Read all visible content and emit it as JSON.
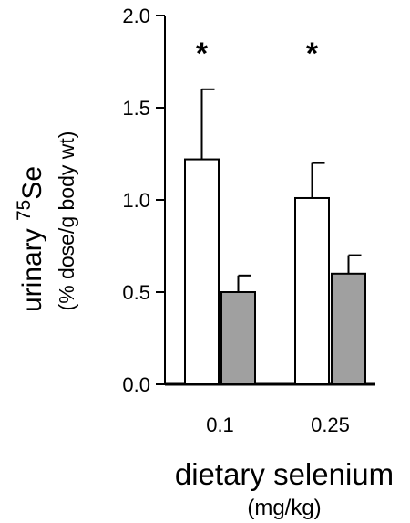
{
  "chart_data": {
    "type": "bar",
    "categories": [
      "0.1",
      "0.25"
    ],
    "series": [
      {
        "values": [
          1.22,
          1.01
        ],
        "errors": [
          0.38,
          0.19
        ],
        "color": "#ffffff"
      },
      {
        "values": [
          0.5,
          0.6
        ],
        "errors": [
          0.09,
          0.1
        ],
        "color": "#a0a0a0"
      }
    ],
    "significance": [
      "*",
      "*"
    ],
    "ylabel": {
      "main_prefix": "urinary ",
      "superscript": "75",
      "main_suffix": "Se",
      "sub": "(% dose/g body wt)"
    },
    "xlabel": {
      "main": "dietary selenium",
      "sub": "(mg/kg)"
    },
    "ylim": [
      0.0,
      2.0
    ],
    "yticks": [
      "0.0",
      "0.5",
      "1.0",
      "1.5",
      "2.0"
    ],
    "grid": false
  }
}
